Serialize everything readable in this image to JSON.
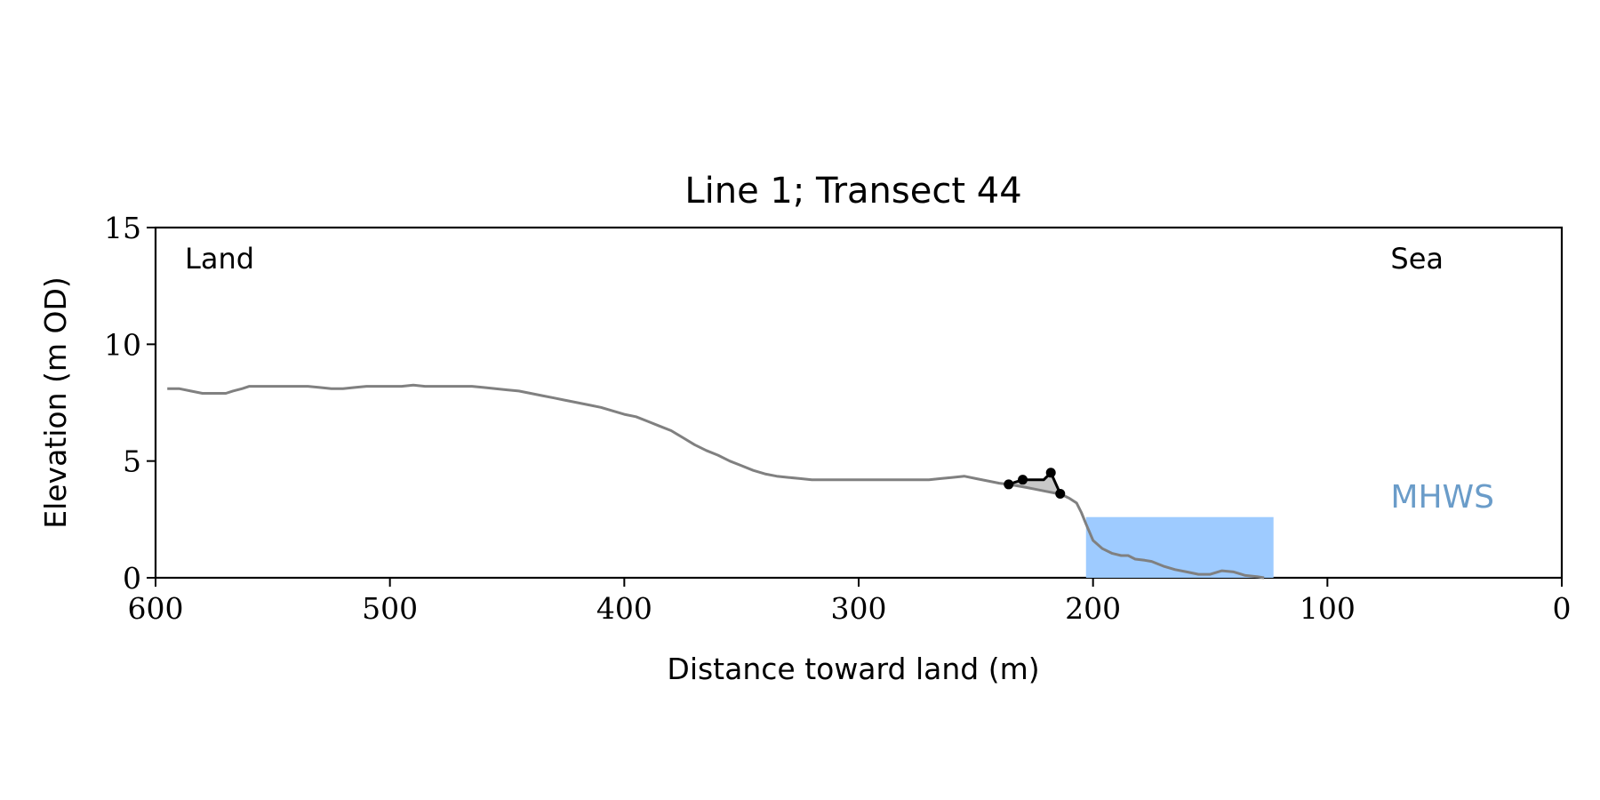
{
  "chart_data": {
    "type": "line",
    "title": "Line 1; Transect 44",
    "xlabel": "Distance toward land (m)",
    "ylabel": "Elevation (m OD)",
    "xlim": [
      600,
      0
    ],
    "ylim": [
      0,
      15
    ],
    "xticks": [
      600,
      500,
      400,
      300,
      200,
      100,
      0
    ],
    "yticks": [
      0,
      5,
      10,
      15
    ],
    "grid": false,
    "annotations": {
      "land": "Land",
      "sea": "Sea",
      "mhws": "MHWS"
    },
    "mhws_level": 2.6,
    "mhws_x_range": [
      203,
      123
    ],
    "colors": {
      "profile": "#808080",
      "mhws_fill": "#9ecbff",
      "mhws_text": "#6a9cc9",
      "cliff": "#000000",
      "cliff_fill": "#c8c8c8"
    },
    "series": [
      {
        "x": [
          595,
          590,
          585,
          580,
          575,
          570,
          567,
          563,
          560,
          555,
          550,
          545,
          540,
          535,
          530,
          525,
          520,
          515,
          510,
          505,
          500,
          495,
          490,
          485,
          480,
          475,
          470,
          465,
          460,
          455,
          450,
          445,
          440,
          435,
          430,
          425,
          420,
          415,
          410,
          405,
          400,
          395,
          390,
          385,
          380,
          375,
          370,
          365,
          360,
          355,
          350,
          345,
          340,
          335,
          330,
          325,
          320,
          315,
          310,
          305,
          300,
          295,
          290,
          285,
          280,
          275,
          270,
          265,
          260,
          255,
          250,
          245,
          240,
          236,
          230,
          225,
          220,
          215,
          212,
          210,
          207,
          205,
          203,
          200,
          196,
          192,
          188,
          185,
          182,
          178,
          175,
          170,
          165,
          160,
          155,
          150,
          145,
          140,
          135,
          130,
          127
        ],
        "y": [
          8.1,
          8.1,
          8.0,
          7.9,
          7.9,
          7.9,
          8.0,
          8.1,
          8.2,
          8.2,
          8.2,
          8.2,
          8.2,
          8.2,
          8.15,
          8.1,
          8.1,
          8.15,
          8.2,
          8.2,
          8.2,
          8.2,
          8.25,
          8.2,
          8.2,
          8.2,
          8.2,
          8.2,
          8.15,
          8.1,
          8.05,
          8.0,
          7.9,
          7.8,
          7.7,
          7.6,
          7.5,
          7.4,
          7.3,
          7.15,
          7.0,
          6.9,
          6.7,
          6.5,
          6.3,
          6.0,
          5.7,
          5.45,
          5.25,
          5.0,
          4.8,
          4.6,
          4.45,
          4.35,
          4.3,
          4.25,
          4.2,
          4.2,
          4.2,
          4.2,
          4.2,
          4.2,
          4.2,
          4.2,
          4.2,
          4.2,
          4.2,
          4.25,
          4.3,
          4.35,
          4.25,
          4.15,
          4.05,
          4.0,
          3.9,
          3.8,
          3.7,
          3.6,
          3.5,
          3.4,
          3.2,
          2.8,
          2.3,
          1.6,
          1.25,
          1.05,
          0.95,
          0.95,
          0.8,
          0.75,
          0.7,
          0.5,
          0.35,
          0.25,
          0.15,
          0.15,
          0.3,
          0.25,
          0.1,
          0.05,
          0.0
        ]
      }
    ],
    "cliff": {
      "x": [
        236,
        230,
        225,
        221,
        218,
        214
      ],
      "y": [
        4.0,
        4.2,
        4.2,
        4.2,
        4.5,
        3.6
      ],
      "markers": [
        {
          "x": 236,
          "y": 4.0
        },
        {
          "x": 230,
          "y": 4.2
        },
        {
          "x": 218,
          "y": 4.5
        },
        {
          "x": 214,
          "y": 3.6
        }
      ]
    }
  }
}
